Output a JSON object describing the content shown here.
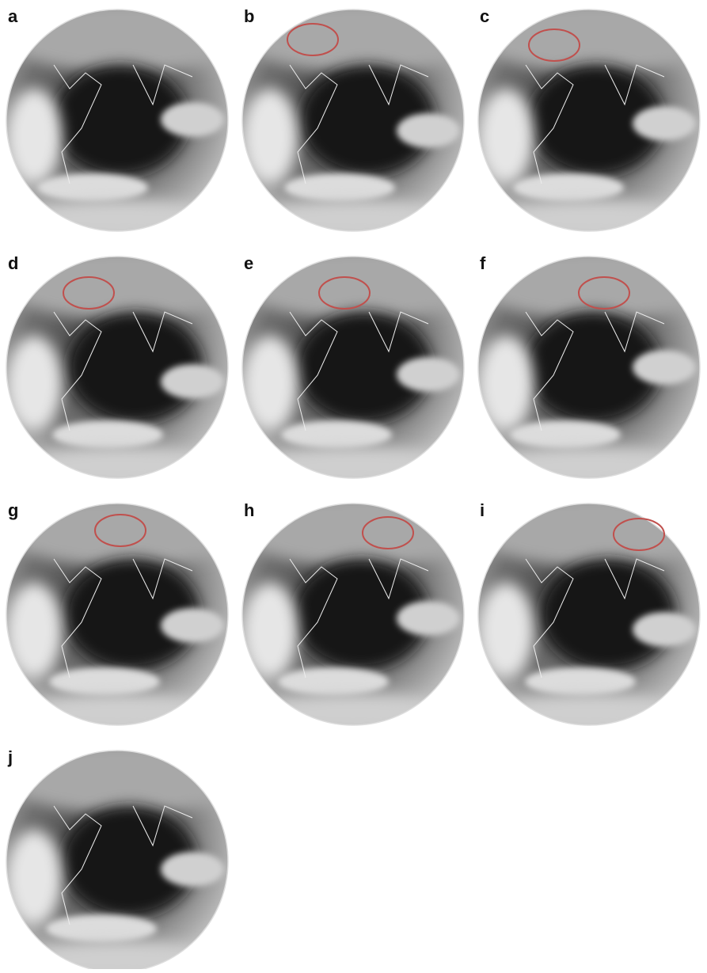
{
  "panels": [
    {
      "label": "a"
    },
    {
      "label": "b"
    },
    {
      "label": "c"
    },
    {
      "label": "d"
    },
    {
      "label": "e"
    },
    {
      "label": "f"
    },
    {
      "label": "g"
    },
    {
      "label": "h"
    },
    {
      "label": "i"
    },
    {
      "label": "j"
    }
  ]
}
